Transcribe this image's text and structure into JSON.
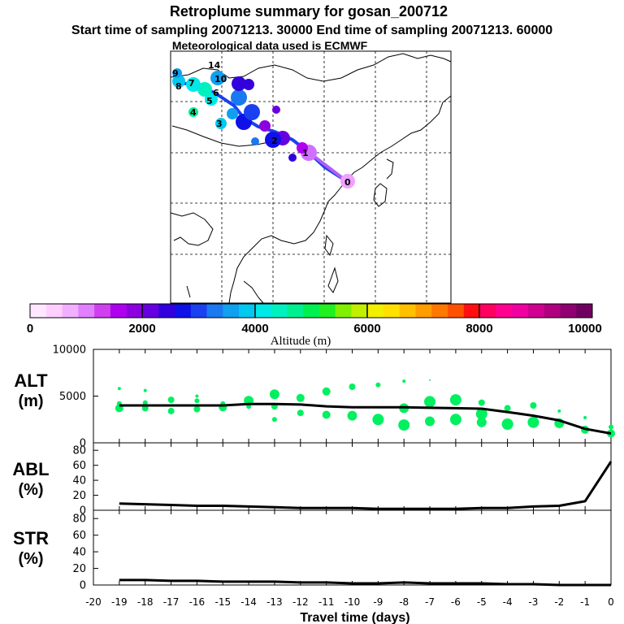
{
  "titles": {
    "main": "Retroplume summary for gosan_200712",
    "line2": "Start time of sampling 20071213. 30000     End time of sampling 20071213. 60000",
    "line3": "Meteorological data used is ECMWF"
  },
  "colorbar": {
    "label": "Altitude (m)",
    "tick_labels": [
      "0",
      "2000",
      "4000",
      "6000",
      "8000",
      "10000"
    ],
    "colors": [
      "#ffe8ff",
      "#ffd0ff",
      "#f0b0ff",
      "#e080ff",
      "#d040f0",
      "#b000f0",
      "#8c00e0",
      "#6600e0",
      "#3300dd",
      "#1010e8",
      "#1a40f0",
      "#1a78f0",
      "#10a0f0",
      "#00c8f0",
      "#00e8e8",
      "#00f0c0",
      "#00f090",
      "#00f050",
      "#20f020",
      "#80f000",
      "#c0f000",
      "#f0f000",
      "#ffe000",
      "#ffc000",
      "#ff9c00",
      "#ff7800",
      "#ff5000",
      "#ff1010",
      "#ff0060",
      "#ff0090",
      "#f000a0",
      "#d00090",
      "#b00080",
      "#900070",
      "#700060"
    ]
  },
  "map": {
    "point_labels": [
      "14",
      "10",
      "9",
      "8",
      "7",
      "6",
      "5",
      "4",
      "3",
      "2",
      "1",
      "0"
    ]
  },
  "chart_data": [
    {
      "type": "line",
      "panel": "ALT",
      "ylabel": [
        "ALT",
        "(m)"
      ],
      "ylim": [
        0,
        10000
      ],
      "y_ticks": [
        "0",
        "5000",
        "10000"
      ],
      "x": [
        -19,
        -18,
        -17,
        -16,
        -15,
        -14,
        -13,
        -12,
        -11,
        -10,
        -9,
        -8,
        -7,
        -6,
        -5,
        -4,
        -3,
        -2,
        -1,
        0
      ],
      "values": [
        4000,
        4000,
        4000,
        4000,
        4000,
        4150,
        4150,
        4100,
        3900,
        3800,
        3800,
        3800,
        3750,
        3700,
        3650,
        3300,
        2900,
        2400,
        1500,
        1000
      ],
      "scatter": [
        {
          "x": -19,
          "y": 3700,
          "s": 5
        },
        {
          "x": -19,
          "y": 4200,
          "s": 3
        },
        {
          "x": -19,
          "y": 5800,
          "s": 2
        },
        {
          "x": -18,
          "y": 3700,
          "s": 4
        },
        {
          "x": -18,
          "y": 4300,
          "s": 3
        },
        {
          "x": -18,
          "y": 5600,
          "s": 2
        },
        {
          "x": -17,
          "y": 3400,
          "s": 4
        },
        {
          "x": -17,
          "y": 4600,
          "s": 4
        },
        {
          "x": -16,
          "y": 3600,
          "s": 4
        },
        {
          "x": -16,
          "y": 4500,
          "s": 3
        },
        {
          "x": -16,
          "y": 5000,
          "s": 2
        },
        {
          "x": -15,
          "y": 3800,
          "s": 5
        },
        {
          "x": -15,
          "y": 4200,
          "s": 3
        },
        {
          "x": -14,
          "y": 4500,
          "s": 6
        },
        {
          "x": -14,
          "y": 3900,
          "s": 3
        },
        {
          "x": -13,
          "y": 5200,
          "s": 6
        },
        {
          "x": -13,
          "y": 3900,
          "s": 4
        },
        {
          "x": -13,
          "y": 2500,
          "s": 3
        },
        {
          "x": -12,
          "y": 4800,
          "s": 5
        },
        {
          "x": -12,
          "y": 3200,
          "s": 4
        },
        {
          "x": -11,
          "y": 5500,
          "s": 5
        },
        {
          "x": -11,
          "y": 3000,
          "s": 5
        },
        {
          "x": -10,
          "y": 6000,
          "s": 4
        },
        {
          "x": -10,
          "y": 2900,
          "s": 6
        },
        {
          "x": -9,
          "y": 6200,
          "s": 3
        },
        {
          "x": -9,
          "y": 2500,
          "s": 7
        },
        {
          "x": -8,
          "y": 6600,
          "s": 2
        },
        {
          "x": -8,
          "y": 3700,
          "s": 6
        },
        {
          "x": -8,
          "y": 1900,
          "s": 7
        },
        {
          "x": -7,
          "y": 4400,
          "s": 7
        },
        {
          "x": -7,
          "y": 2300,
          "s": 6
        },
        {
          "x": -7,
          "y": 6700,
          "s": 1
        },
        {
          "x": -6,
          "y": 4600,
          "s": 7
        },
        {
          "x": -6,
          "y": 2500,
          "s": 7
        },
        {
          "x": -5,
          "y": 4300,
          "s": 4
        },
        {
          "x": -5,
          "y": 3100,
          "s": 7
        },
        {
          "x": -5,
          "y": 2200,
          "s": 6
        },
        {
          "x": -4,
          "y": 3700,
          "s": 4
        },
        {
          "x": -4,
          "y": 2000,
          "s": 7
        },
        {
          "x": -3,
          "y": 4000,
          "s": 4
        },
        {
          "x": -3,
          "y": 2200,
          "s": 7
        },
        {
          "x": -2,
          "y": 2100,
          "s": 6
        },
        {
          "x": -2,
          "y": 3400,
          "s": 2
        },
        {
          "x": -1,
          "y": 1400,
          "s": 5
        },
        {
          "x": -1,
          "y": 2700,
          "s": 2
        },
        {
          "x": 0,
          "y": 1000,
          "s": 5
        },
        {
          "x": 0,
          "y": 1700,
          "s": 3
        }
      ]
    },
    {
      "type": "line",
      "panel": "ABL",
      "ylabel": [
        "ABL",
        "(%)"
      ],
      "ylim": [
        0,
        90
      ],
      "y_ticks": [
        "0",
        "20",
        "40",
        "60",
        "80"
      ],
      "x": [
        -19,
        -18,
        -17,
        -16,
        -15,
        -14,
        -13,
        -12,
        -11,
        -10,
        -9,
        -8,
        -7,
        -6,
        -5,
        -4,
        -3,
        -2,
        -1,
        0
      ],
      "values": [
        9,
        8,
        7,
        6,
        6,
        5,
        4,
        3,
        3,
        3,
        2,
        2,
        2,
        2,
        3,
        3,
        5,
        6,
        12,
        65
      ]
    },
    {
      "type": "line",
      "panel": "STR",
      "ylabel": [
        "STR",
        "(%)"
      ],
      "ylim": [
        0,
        90
      ],
      "y_ticks": [
        "0",
        "20",
        "40",
        "60",
        "80"
      ],
      "x": [
        -19,
        -18,
        -17,
        -16,
        -15,
        -14,
        -13,
        -12,
        -11,
        -10,
        -9,
        -8,
        -7,
        -6,
        -5,
        -4,
        -3,
        -2,
        -1,
        0
      ],
      "values": [
        6,
        6,
        5,
        5,
        4,
        4,
        4,
        3,
        3,
        2,
        2,
        3,
        2,
        2,
        2,
        1,
        1,
        0,
        0,
        0
      ]
    }
  ],
  "xaxis": {
    "label": "Travel time (days)",
    "tick_labels": [
      "-20",
      "-19",
      "-18",
      "-17",
      "-16",
      "-15",
      "-14",
      "-13",
      "-12",
      "-11",
      "-10",
      "-9",
      "-8",
      "-7",
      "-6",
      "-5",
      "-4",
      "-3",
      "-2",
      "-1",
      "0"
    ]
  }
}
